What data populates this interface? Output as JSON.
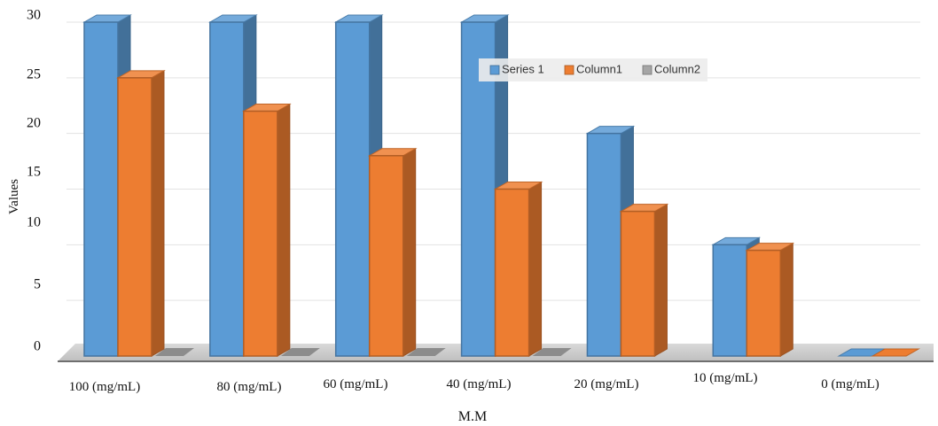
{
  "chart_data": {
    "type": "bar",
    "title": "",
    "xlabel": "M.M",
    "ylabel": "Values",
    "categories": [
      "100 (mg/mL)",
      "80 (mg/mL)",
      "60 (mg/mL)",
      "40 (mg/mL)",
      "20 (mg/mL)",
      "10 (mg/mL)",
      "0 (mg/mL)"
    ],
    "series": [
      {
        "name": "Series 1",
        "values": [
          30,
          30,
          30,
          30,
          20,
          10,
          0
        ],
        "color": "#5b9bd5"
      },
      {
        "name": "Column1",
        "values": [
          25,
          22,
          18,
          15,
          13,
          9.5,
          0
        ],
        "color": "#ed7d31"
      },
      {
        "name": "Column2",
        "values": [
          0,
          0,
          0,
          0,
          null,
          null,
          null
        ],
        "color": "#a5a5a5"
      }
    ],
    "yticks": [
      "30",
      "25",
      "20",
      "15",
      "10",
      "5",
      "0"
    ],
    "ylim": [
      0,
      30
    ],
    "grid": true,
    "legend": "top-center",
    "style": "3d-clustered-column"
  }
}
